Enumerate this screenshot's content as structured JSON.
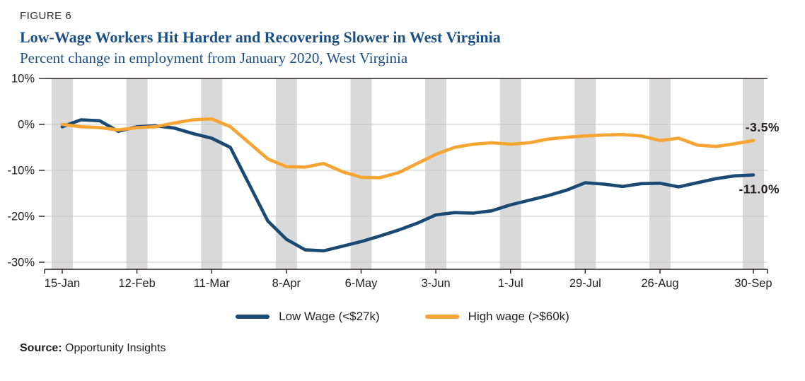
{
  "figure_label": "FIGURE 6",
  "title": "Low-Wage Workers Hit Harder and Recovering Slower in West Virginia",
  "subtitle": "Percent change in employment from January 2020, West Virginia",
  "source_label": "Source:",
  "source_text": "Opportunity Insights",
  "colors": {
    "title": "#1c5085",
    "band": "#d9d9d9",
    "gridline": "#c8c8c8",
    "axis": "#231f20",
    "low_wage": "#1a4a73",
    "high_wage": "#f6a535"
  },
  "chart_data": {
    "type": "line",
    "title": "Low-Wage Workers Hit Harder and Recovering Slower in West Virginia",
    "subtitle": "Percent change in employment from January 2020, West Virginia",
    "ylabel": "Percent change in employment",
    "ylim": [
      -30,
      10
    ],
    "grid": true,
    "band_color": "#d9d9d9",
    "y_ticks": [
      10,
      0,
      -10,
      -20,
      -30
    ],
    "y_tick_labels": [
      "10%",
      "0%",
      "-10%",
      "-20%",
      "-30%"
    ],
    "x_tick_labels": [
      "15-Jan",
      "12-Feb",
      "11-Mar",
      "8-Apr",
      "6-May",
      "3-Jun",
      "1-Jul",
      "29-Jul",
      "26-Aug",
      "30-Sep"
    ],
    "x_tick_indices": [
      0,
      4,
      8,
      12,
      16,
      20,
      24,
      28,
      32,
      37
    ],
    "legend_position": "bottom",
    "series": [
      {
        "name": "Low Wage (<$27k)",
        "color": "#1a4a73",
        "end_label": "-11.0%",
        "values": [
          -0.5,
          1.0,
          0.8,
          -1.5,
          -0.5,
          -0.3,
          -0.8,
          -2.0,
          -3.0,
          -5.0,
          -13.0,
          -21.0,
          -25.0,
          -27.3,
          -27.5,
          -26.5,
          -25.5,
          -24.3,
          -23.0,
          -21.5,
          -19.7,
          -19.2,
          -19.3,
          -18.8,
          -17.5,
          -16.5,
          -15.5,
          -14.3,
          -12.7,
          -13.0,
          -13.5,
          -12.9,
          -12.8,
          -13.6,
          -12.7,
          -11.8,
          -11.2,
          -11.0
        ]
      },
      {
        "name": "High wage (>$60k)",
        "color": "#f6a535",
        "end_label": "-3.5%",
        "values": [
          0.0,
          -0.5,
          -0.7,
          -1.2,
          -0.7,
          -0.5,
          0.3,
          1.0,
          1.2,
          -0.5,
          -4.0,
          -7.5,
          -9.2,
          -9.3,
          -8.5,
          -10.3,
          -11.5,
          -11.6,
          -10.5,
          -8.5,
          -6.5,
          -5.0,
          -4.3,
          -4.0,
          -4.3,
          -4.0,
          -3.2,
          -2.8,
          -2.5,
          -2.3,
          -2.2,
          -2.5,
          -3.5,
          -3.0,
          -4.5,
          -4.8,
          -4.2,
          -3.5
        ]
      }
    ]
  }
}
